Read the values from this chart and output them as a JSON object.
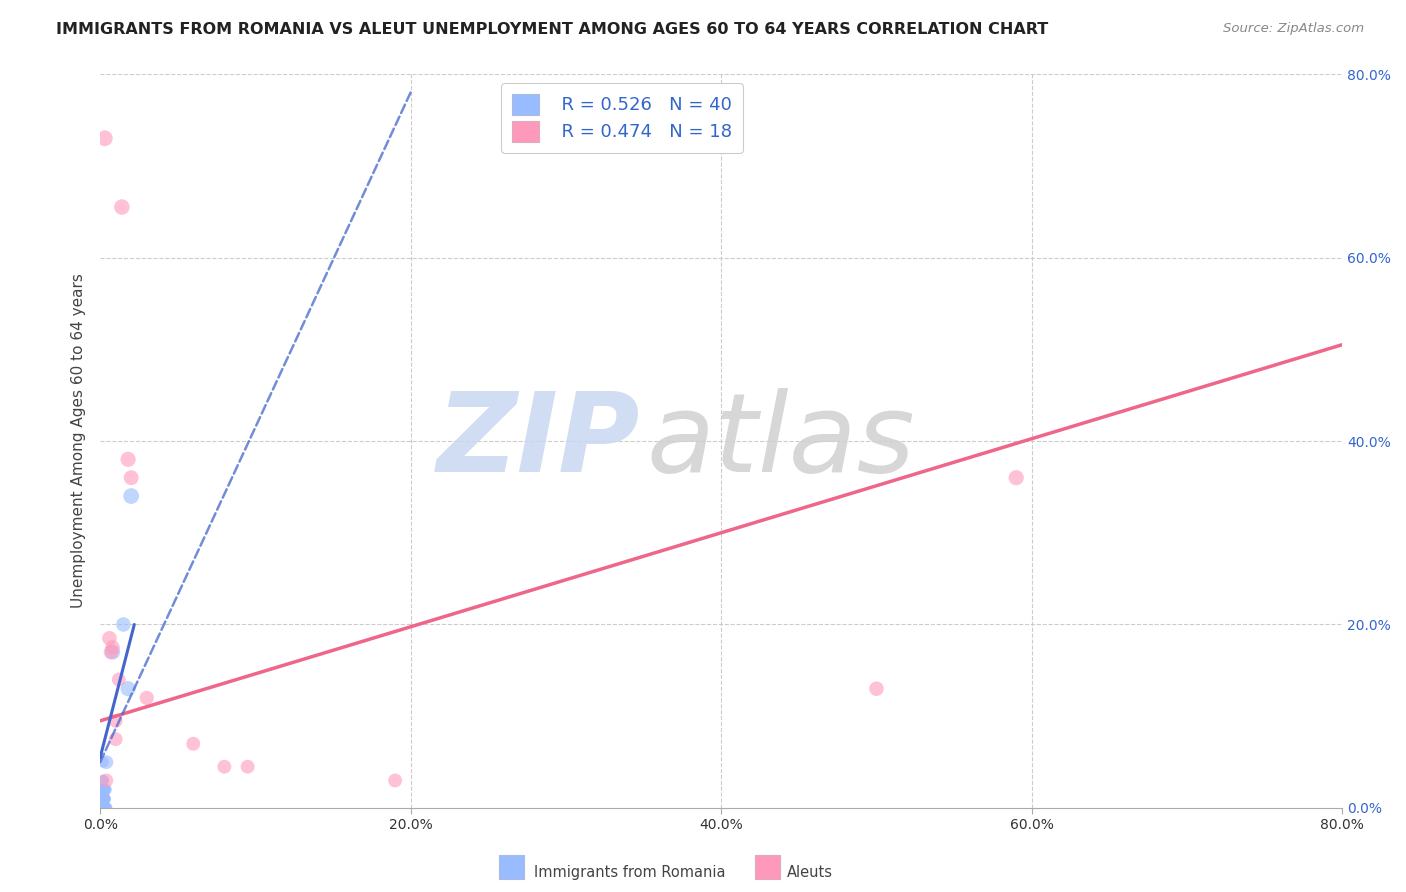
{
  "title": "IMMIGRANTS FROM ROMANIA VS ALEUT UNEMPLOYMENT AMONG AGES 60 TO 64 YEARS CORRELATION CHART",
  "source": "Source: ZipAtlas.com",
  "ylabel": "Unemployment Among Ages 60 to 64 years",
  "xlim": [
    0.0,
    0.8
  ],
  "ylim": [
    0.0,
    0.8
  ],
  "xtick_vals": [
    0.0,
    0.2,
    0.4,
    0.6,
    0.8
  ],
  "ytick_vals": [
    0.0,
    0.2,
    0.4,
    0.6,
    0.8
  ],
  "grid_color": "#cccccc",
  "background_color": "#ffffff",
  "blue_color": "#99bbff",
  "pink_color": "#ff99bb",
  "blue_line_color": "#4466cc",
  "pink_line_color": "#ee6688",
  "legend_r1": "R = 0.526",
  "legend_n1": "N = 40",
  "legend_r2": "R = 0.474",
  "legend_n2": "N = 18",
  "legend_text_color": "#3366cc",
  "legend_n_color": "#ff3300",
  "romania_x": [
    0.002,
    0.003,
    0.004,
    0.001,
    0.002,
    0.004,
    0.001,
    0.003,
    0.002,
    0.001,
    0.003,
    0.004,
    0.003,
    0.002,
    0.001,
    0.003,
    0.002,
    0.002,
    0.001,
    0.003,
    0.002,
    0.002,
    0.001,
    0.002,
    0.003,
    0.002,
    0.001,
    0.003,
    0.003,
    0.002,
    0.001,
    0.002,
    0.001,
    0.001,
    0.002,
    0.018,
    0.02,
    0.015,
    0.008,
    0.004
  ],
  "romania_y": [
    0.0,
    0.0,
    0.0,
    0.0,
    0.0,
    0.0,
    0.01,
    0.01,
    0.0,
    0.0,
    0.02,
    0.02,
    0.01,
    0.01,
    0.02,
    0.02,
    0.0,
    0.03,
    0.0,
    0.01,
    0.02,
    0.0,
    0.0,
    0.03,
    0.02,
    0.01,
    0.0,
    0.01,
    0.0,
    0.0,
    0.0,
    0.05,
    0.0,
    0.0,
    0.0,
    0.13,
    0.34,
    0.2,
    0.17,
    0.05
  ],
  "romania_sizes": [
    90,
    85,
    75,
    70,
    80,
    70,
    65,
    75,
    70,
    60,
    60,
    65,
    65,
    65,
    60,
    70,
    65,
    70,
    60,
    70,
    65,
    60,
    55,
    65,
    65,
    60,
    55,
    70,
    65,
    60,
    55,
    65,
    55,
    55,
    60,
    120,
    130,
    110,
    120,
    100
  ],
  "aleut_x": [
    0.003,
    0.007,
    0.01,
    0.012,
    0.018,
    0.02,
    0.03,
    0.06,
    0.5,
    0.59,
    0.006,
    0.01,
    0.08,
    0.095,
    0.19,
    0.008,
    0.004,
    0.014
  ],
  "aleut_y": [
    0.73,
    0.17,
    0.095,
    0.14,
    0.38,
    0.36,
    0.12,
    0.07,
    0.13,
    0.36,
    0.185,
    0.075,
    0.045,
    0.045,
    0.03,
    0.175,
    0.03,
    0.655
  ],
  "aleut_sizes": [
    130,
    110,
    100,
    100,
    120,
    115,
    105,
    100,
    110,
    120,
    110,
    100,
    100,
    100,
    100,
    110,
    100,
    125
  ],
  "pink_line_x": [
    0.0,
    0.8
  ],
  "pink_line_y": [
    0.095,
    0.505
  ],
  "blue_line_x": [
    0.0,
    0.2
  ],
  "blue_line_y": [
    0.05,
    0.78
  ]
}
